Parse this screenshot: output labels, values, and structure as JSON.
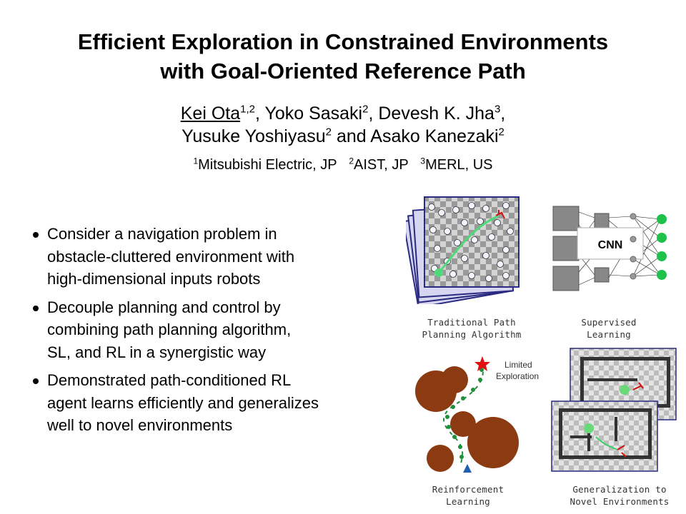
{
  "title": {
    "line1": "Efficient Exploration in Constrained Environments",
    "line2": "with Goal-Oriented Reference Path"
  },
  "authors": {
    "a1": "Kei Ota",
    "a1_sup": "1,2",
    "a2": "Yoko Sasaki",
    "a2_sup": "2",
    "a3": "Devesh K. Jha",
    "a3_sup": "3",
    "a4": "Yusuke Yoshiyasu",
    "a4_sup": "2",
    "and": "and",
    "a5": "Asako Kanezaki",
    "a5_sup": "2"
  },
  "affiliations": [
    {
      "sup": "1",
      "name": "Mitsubishi Electric, JP"
    },
    {
      "sup": "2",
      "name": "AIST, JP"
    },
    {
      "sup": "3",
      "name": "MERL, US"
    }
  ],
  "bullets": [
    {
      "lines": [
        "Consider a navigation problem in",
        "obstacle-cluttered environment with",
        "high-dimensional inputs robots"
      ]
    },
    {
      "lines": [
        "Decouple planning and control by",
        "combining path planning algorithm,",
        "SL, and RL in a synergistic way"
      ]
    },
    {
      "lines": [
        "Demonstrated path-conditioned RL",
        "agent learns efficiently and generalizes",
        "well to novel environments"
      ]
    }
  ],
  "figure": {
    "cnn_label": "CNN",
    "limited_exploration": [
      "Limited",
      "Exploration"
    ],
    "captions": {
      "path_planning": [
        "Traditional Path",
        "Planning Algorithm"
      ],
      "supervised": [
        "Supervised",
        "Learning"
      ],
      "rl": [
        "Reinforcement",
        "Learning"
      ],
      "generalization": [
        "Generalization to",
        "Novel Environments"
      ]
    },
    "colors": {
      "path": "#4fd97a",
      "obstacle": "#8b3a12",
      "goal": "#e01010",
      "start": "#1f5fb0"
    }
  }
}
